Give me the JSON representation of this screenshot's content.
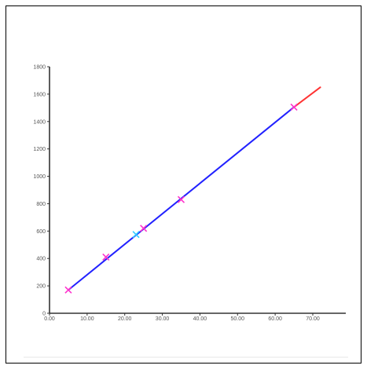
{
  "chart_data": {
    "type": "scatter",
    "title": "",
    "xlabel": "",
    "ylabel": "",
    "xlim": [
      0,
      80
    ],
    "ylim": [
      0,
      1800
    ],
    "x_ticks": [
      {
        "value": 0,
        "label": "0.00"
      },
      {
        "value": 10,
        "label": "10.00"
      },
      {
        "value": 20,
        "label": "20.00"
      },
      {
        "value": 30,
        "label": "30.00"
      },
      {
        "value": 40,
        "label": "40.00"
      },
      {
        "value": 50,
        "label": "50.00"
      },
      {
        "value": 60,
        "label": "60.00"
      },
      {
        "value": 70,
        "label": "70.00"
      }
    ],
    "y_ticks": [
      {
        "value": 0,
        "label": "0"
      },
      {
        "value": 200,
        "label": "200"
      },
      {
        "value": 400,
        "label": "400"
      },
      {
        "value": 600,
        "label": "600"
      },
      {
        "value": 800,
        "label": "800"
      },
      {
        "value": 1000,
        "label": "1000"
      },
      {
        "value": 1200,
        "label": "1200"
      },
      {
        "value": 1400,
        "label": "1400"
      },
      {
        "value": 1600,
        "label": "1600"
      },
      {
        "value": 1800,
        "label": "1800"
      }
    ],
    "grid": false,
    "points": [
      {
        "x": 5,
        "y": 170,
        "color": "#ff33cc"
      },
      {
        "x": 15,
        "y": 410,
        "color": "#ff33cc"
      },
      {
        "x": 23,
        "y": 575,
        "color": "#33ccff"
      },
      {
        "x": 25,
        "y": 620,
        "color": "#ff33cc"
      },
      {
        "x": 35,
        "y": 830,
        "color": "#ff33cc"
      },
      {
        "x": 65,
        "y": 1505,
        "color": "#ff33cc"
      }
    ],
    "lines": [
      {
        "x": [
          5,
          65
        ],
        "y": [
          170,
          1505
        ],
        "color": "#2222ff"
      },
      {
        "x": [
          65,
          72
        ],
        "y": [
          1505,
          1650
        ],
        "color": "#ff3333"
      }
    ],
    "colors": {
      "axis": "#333333",
      "marker": "#ff33cc",
      "highlight": "#33ccff",
      "fit_line": "#2222ff",
      "extrapolation": "#ff3333"
    }
  }
}
